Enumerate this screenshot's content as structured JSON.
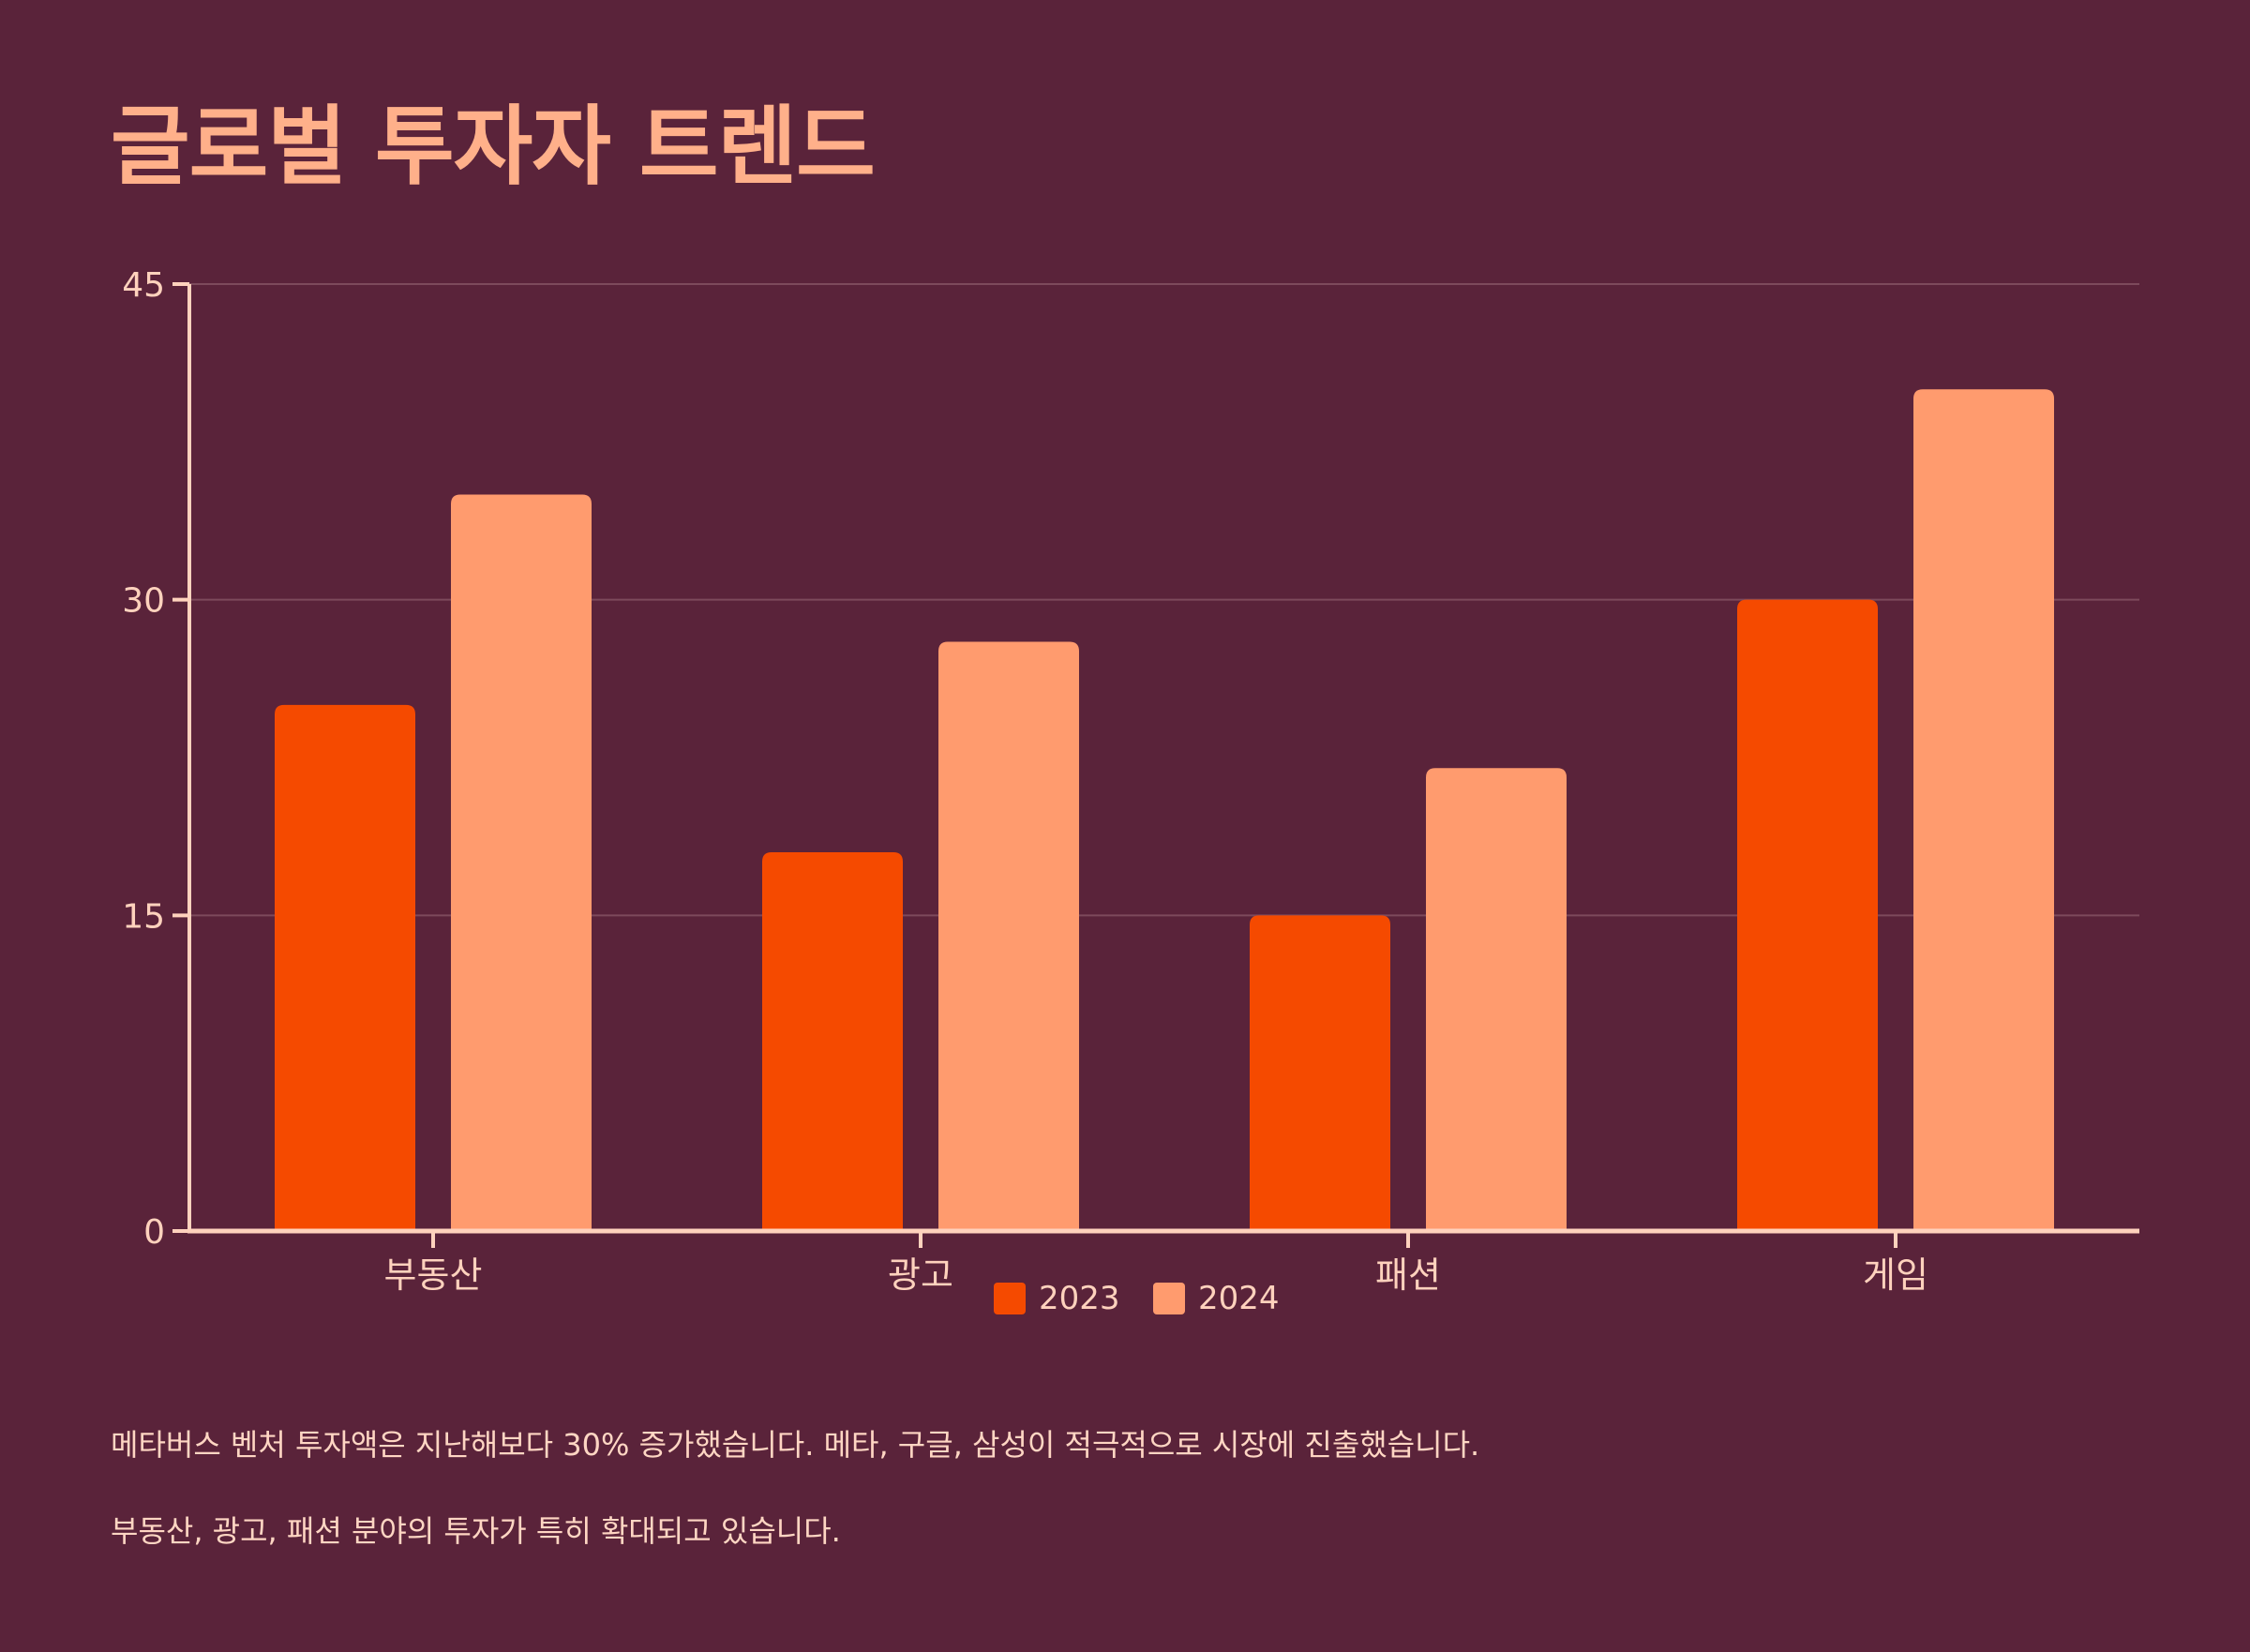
{
  "chart_data": {
    "type": "bar",
    "title": "글로벌 투자자 트렌드",
    "categories": [
      "부동산",
      "광고",
      "패션",
      "게임"
    ],
    "series": [
      {
        "name": "2023",
        "values": [
          25,
          18,
          15,
          30
        ],
        "color": "#f54a00"
      },
      {
        "name": "2024",
        "values": [
          35,
          28,
          22,
          40
        ],
        "color": "#ff9b6e"
      }
    ],
    "y_ticks": [
      "0",
      "15",
      "30",
      "45"
    ],
    "ylim": [
      0,
      45
    ],
    "xlabel": "",
    "ylabel": "",
    "grid": true,
    "legend": "bottom-center"
  },
  "notes": [
    "메타버스 벤처 투자액은 지난해보다 30% 증가했습니다. 메타, 구글, 삼성이 적극적으로 시장에 진출했습니다.",
    "부동산, 광고, 패션 분야의 투자가 특히 확대되고 있습니다."
  ],
  "colors": {
    "background": "#5a233a",
    "axis": "#ffd2bd",
    "grid": "#7d4a5c",
    "title": "#ffb08a"
  }
}
